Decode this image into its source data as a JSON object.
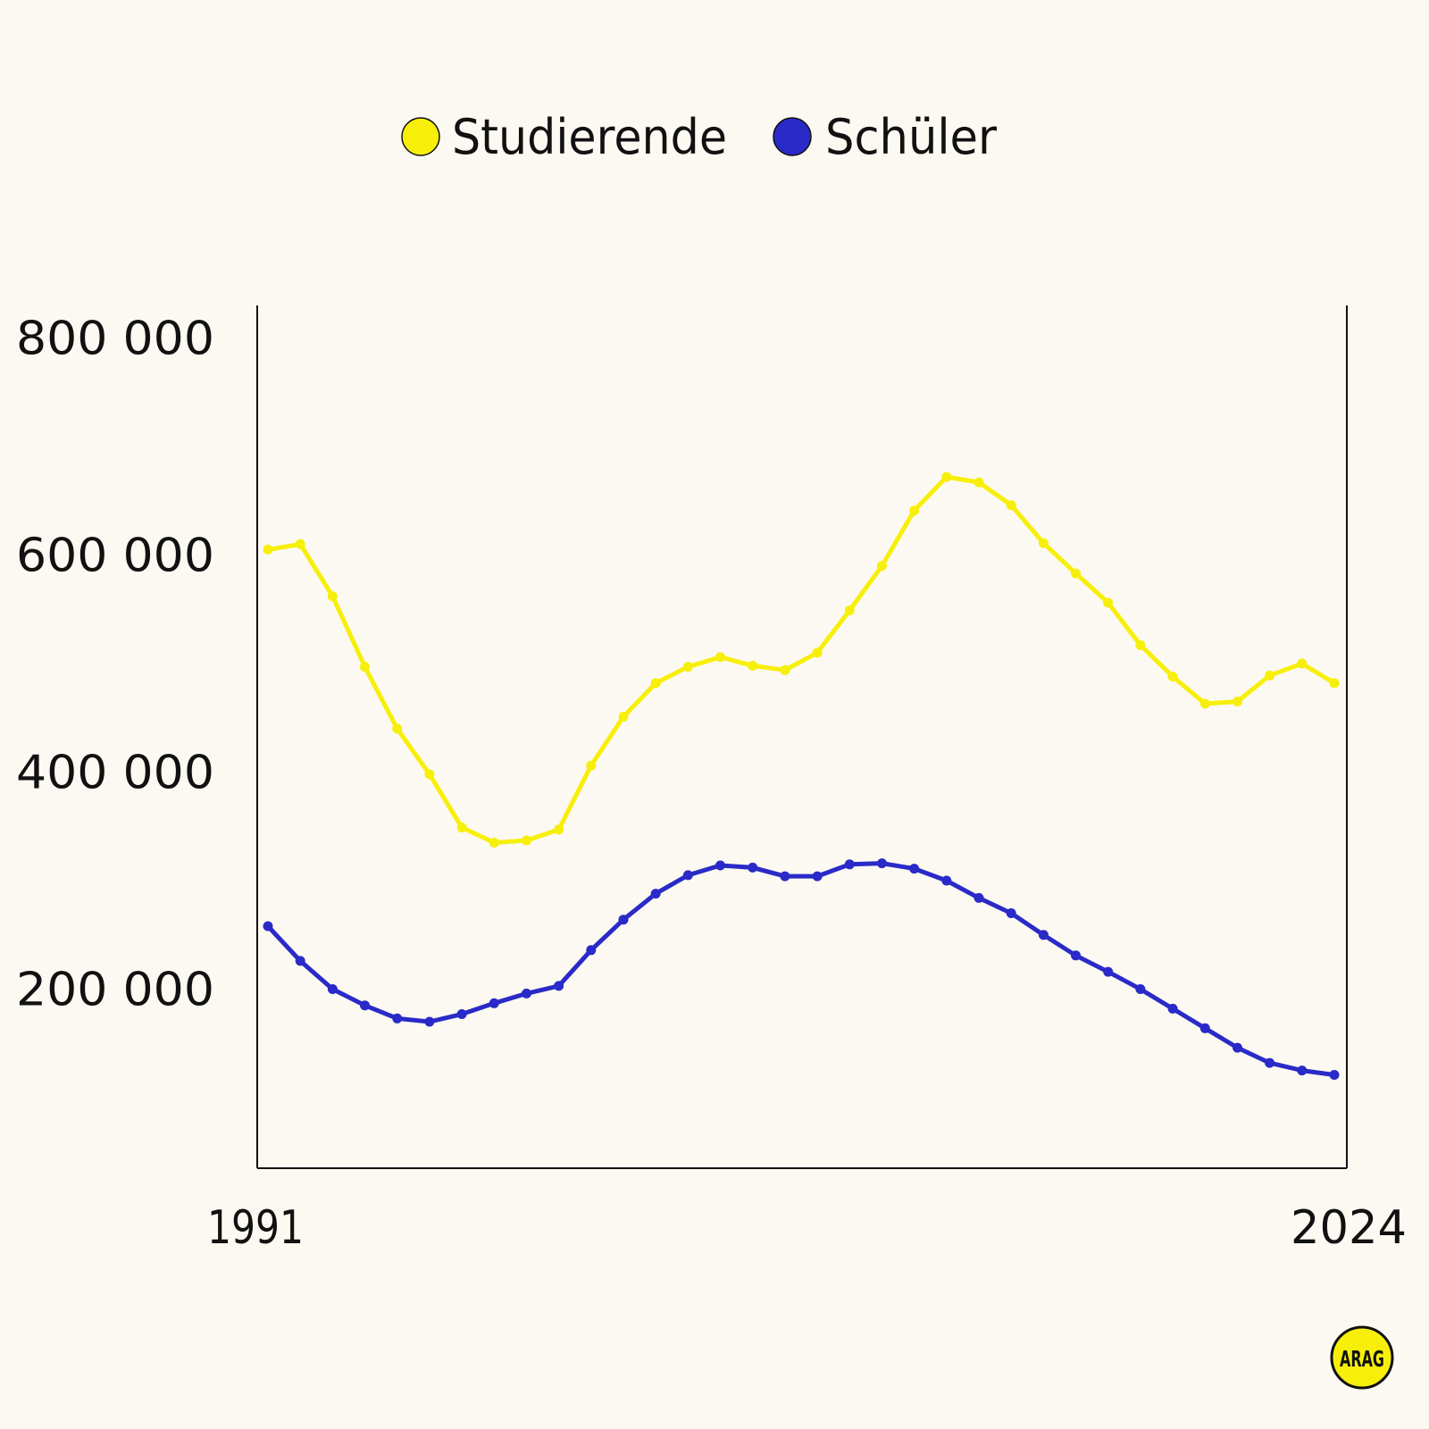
{
  "chart_data": {
    "type": "line",
    "title": "",
    "xlabel": "",
    "ylabel": "",
    "x": [
      1991,
      1992,
      1993,
      1994,
      1995,
      1996,
      1997,
      1998,
      1999,
      2000,
      2001,
      2002,
      2003,
      2004,
      2005,
      2006,
      2007,
      2008,
      2009,
      2010,
      2011,
      2012,
      2013,
      2014,
      2015,
      2016,
      2017,
      2018,
      2019,
      2020,
      2021,
      2022,
      2023,
      2024
    ],
    "x_tick_labels": [
      "1991",
      "2024"
    ],
    "y_tick_labels": [
      "800 000",
      "600 000",
      "400 000",
      "200 000"
    ],
    "y_ticks": [
      800000,
      600000,
      400000,
      200000
    ],
    "ylim": [
      35000,
      830000
    ],
    "grid": false,
    "legend_position": "top-center",
    "series": [
      {
        "name": "Studierende",
        "color": "#f7ef0a",
        "values": [
          605000,
          610000,
          562000,
          497000,
          440000,
          398000,
          349000,
          335000,
          337000,
          347000,
          406000,
          451000,
          482000,
          497000,
          506000,
          498000,
          494000,
          510000,
          549000,
          590000,
          641000,
          672000,
          667000,
          646000,
          611000,
          583000,
          556000,
          517000,
          488000,
          463000,
          465000,
          489000,
          500000,
          482000
        ]
      },
      {
        "name": "Schüler",
        "color": "#2a2ac8",
        "values": [
          258000,
          226000,
          200000,
          185000,
          173000,
          170000,
          177000,
          187000,
          196000,
          203000,
          236000,
          264000,
          288000,
          305000,
          314000,
          312000,
          304000,
          304000,
          315000,
          316000,
          311000,
          300000,
          284000,
          270000,
          250000,
          231000,
          216000,
          200000,
          182000,
          164000,
          146000,
          132000,
          125000,
          121000
        ]
      }
    ]
  },
  "logo": {
    "text": "ARAG",
    "fill": "#f7ef0a",
    "stroke": "#111111"
  }
}
